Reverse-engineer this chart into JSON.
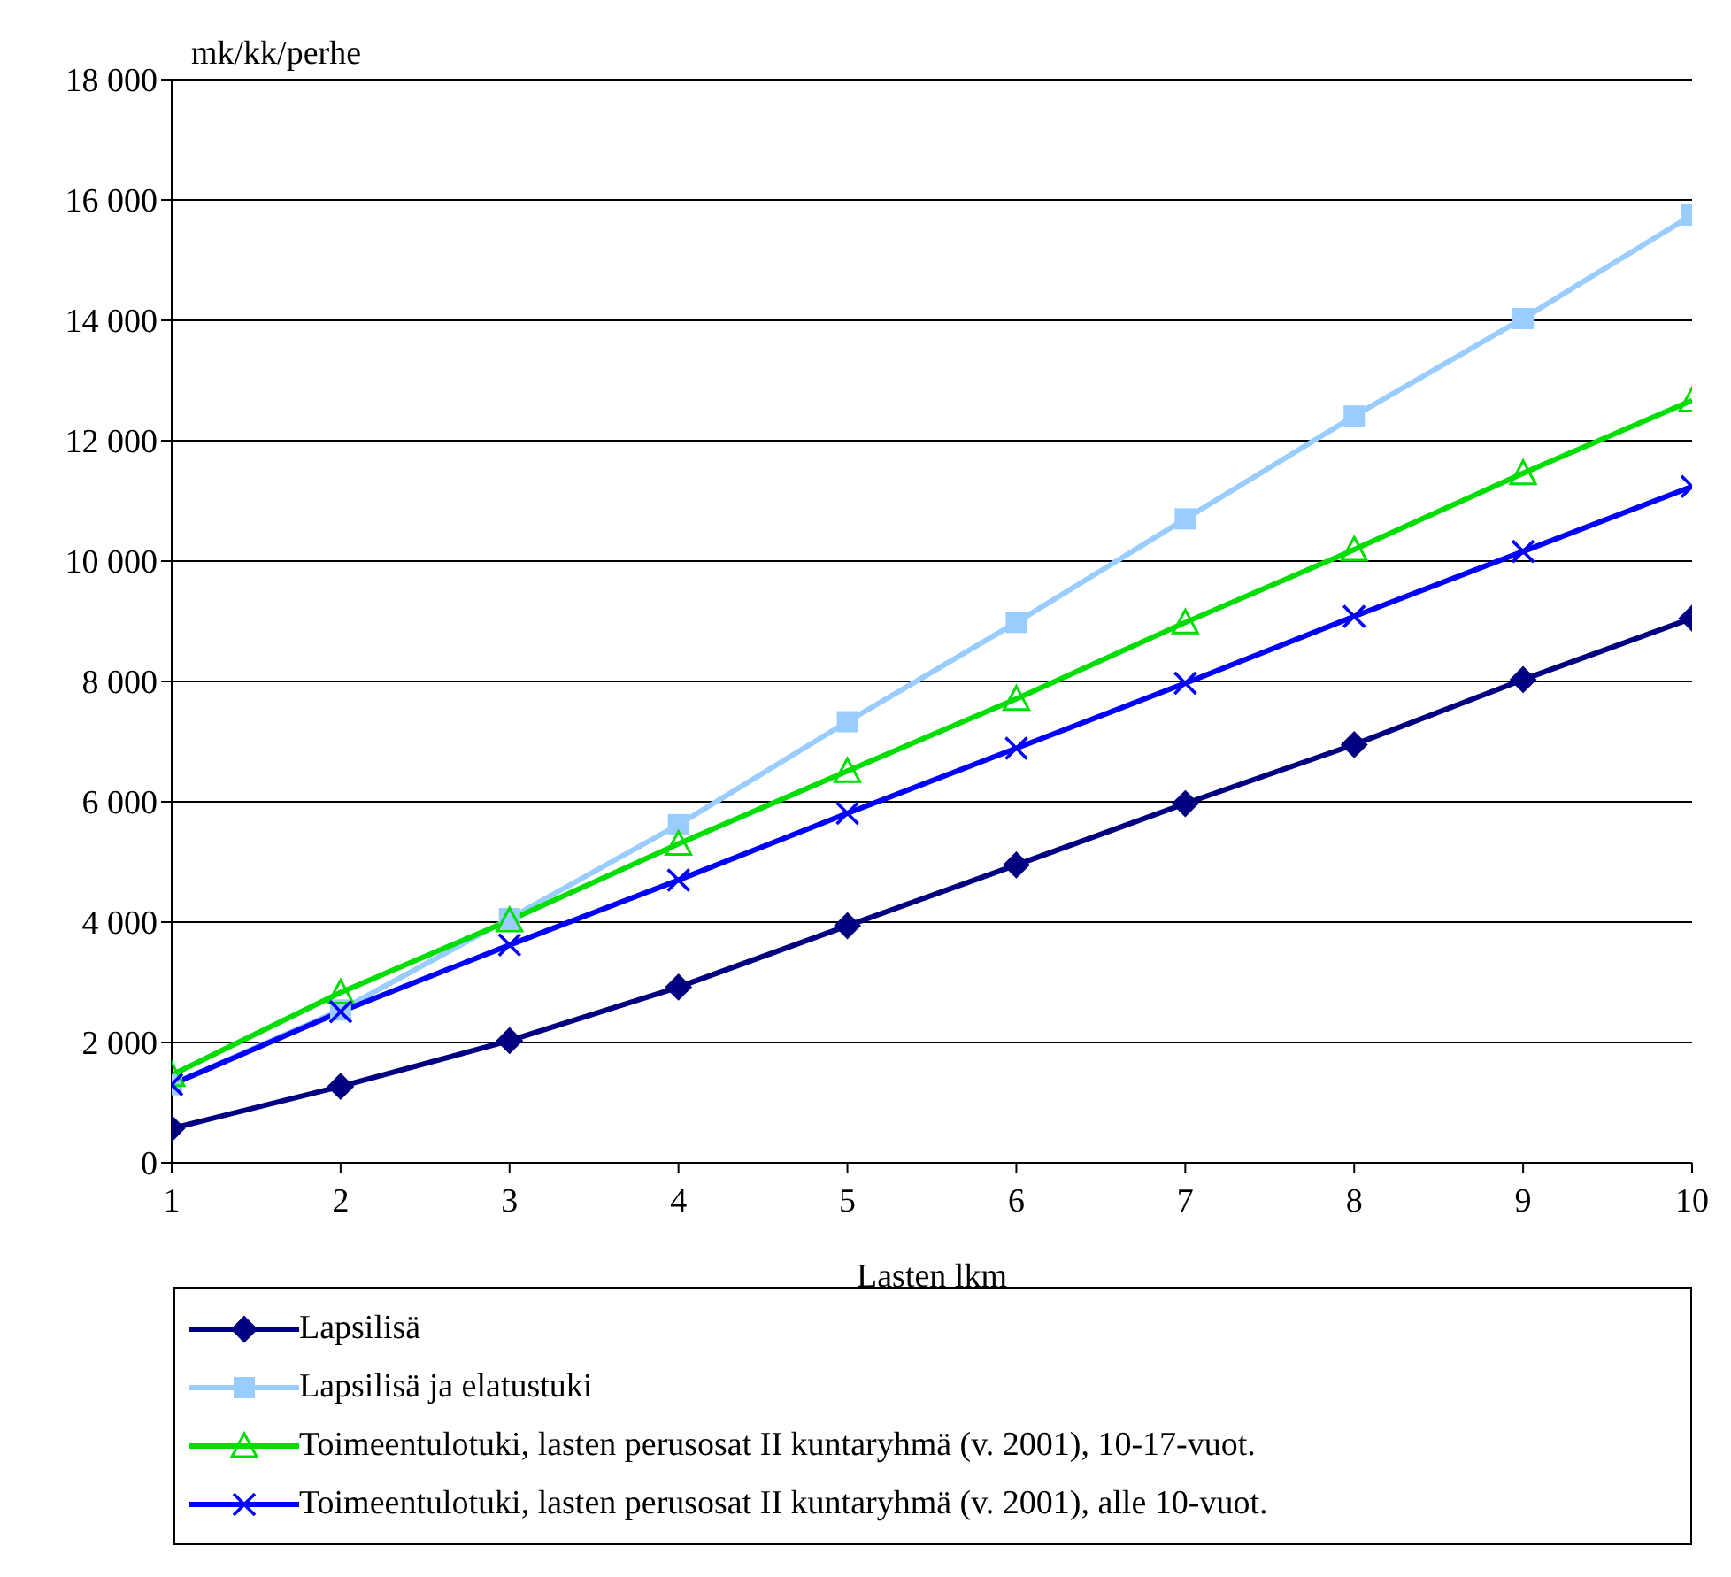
{
  "chart_data": {
    "type": "line",
    "ylabel": "mk/kk/perhe",
    "xlabel": "Lasten lkm",
    "x": [
      1,
      2,
      3,
      4,
      5,
      6,
      7,
      8,
      9,
      10
    ],
    "xlim": [
      1,
      10
    ],
    "xticks": [
      1,
      2,
      3,
      4,
      5,
      6,
      7,
      8,
      9,
      10
    ],
    "ylim": [
      0,
      18000
    ],
    "yticks": [
      {
        "value": 0,
        "label": "0"
      },
      {
        "value": 2000,
        "label": "2 000"
      },
      {
        "value": 4000,
        "label": "4 000"
      },
      {
        "value": 6000,
        "label": "6 000"
      },
      {
        "value": 8000,
        "label": "8 000"
      },
      {
        "value": 10000,
        "label": "10 000"
      },
      {
        "value": 12000,
        "label": "12 000"
      },
      {
        "value": 14000,
        "label": "14 000"
      },
      {
        "value": 16000,
        "label": "16 000"
      },
      {
        "value": 18000,
        "label": "18 000"
      }
    ],
    "grid": "y",
    "legend": "bottom",
    "series": [
      {
        "name": "Lapsilisä",
        "color": "#000080",
        "marker": "diamond",
        "values": [
          570,
          1270,
          2030,
          2920,
          3940,
          4950,
          5970,
          6950,
          8030,
          9050
        ]
      },
      {
        "name": "Lapsilisä ja elatustuki",
        "color": "#99ccff",
        "marker": "square",
        "values": [
          1300,
          2540,
          4060,
          5620,
          7330,
          8980,
          10700,
          12410,
          14030,
          15750
        ]
      },
      {
        "name": "Toimeentulotuki, lasten perusosat II kuntaryhmä (v. 2001), 10-17-vuot.",
        "color": "#00dd00",
        "marker": "triangle",
        "values": [
          1460,
          2830,
          4030,
          5300,
          6510,
          7710,
          8980,
          10190,
          11460,
          12670
        ]
      },
      {
        "name": "Toimeentulotuki, lasten perusosat II kuntaryhmä (v. 2001), alle 10-vuot.",
        "color": "#0000ff",
        "marker": "cross",
        "values": [
          1300,
          2510,
          3620,
          4700,
          5810,
          6890,
          7970,
          9080,
          10160,
          11240
        ]
      }
    ]
  }
}
